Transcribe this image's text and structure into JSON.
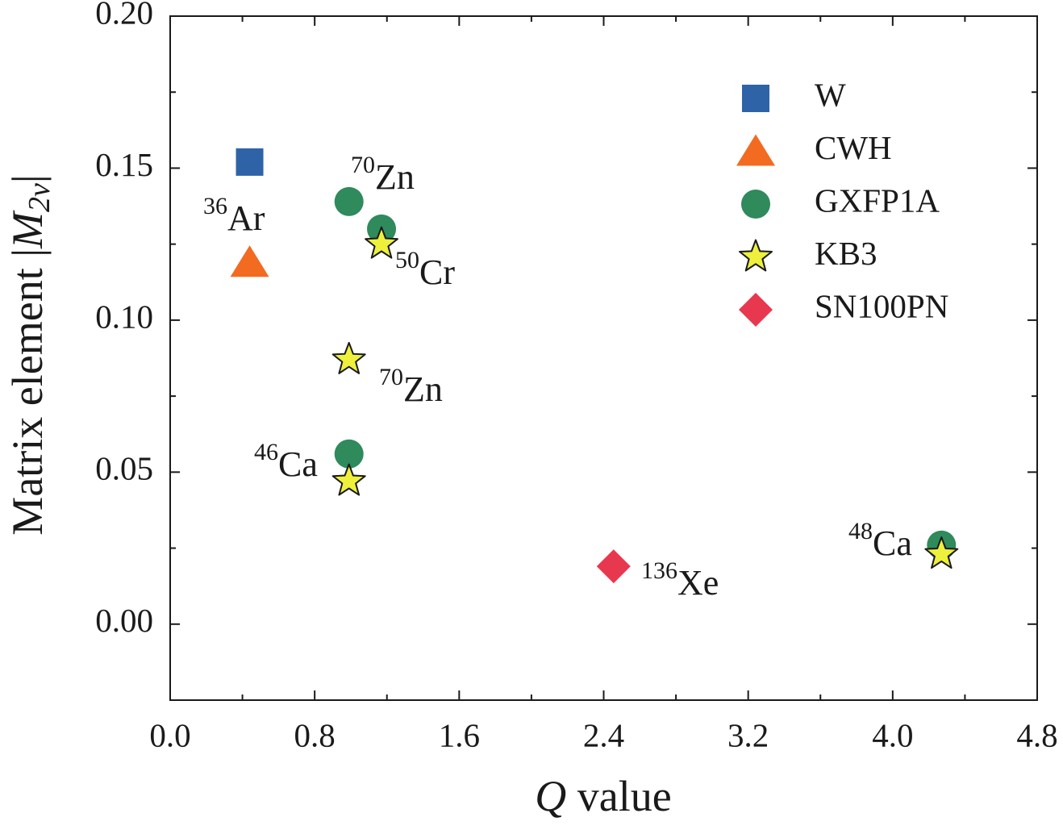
{
  "chart_data": {
    "type": "scatter",
    "x_label": {
      "symbol": "Q",
      "text": "value"
    },
    "y_label": {
      "text": "Matrix element",
      "open": "|",
      "symbol": "M",
      "subscript": "2ν",
      "close": "|"
    },
    "xlim": [
      0,
      4.8
    ],
    "ylim": [
      -0.025,
      0.2
    ],
    "xticks": [
      {
        "value": 0,
        "label": "0.0"
      },
      0.8,
      1.6,
      2.4,
      3.2,
      {
        "value": 4,
        "label": "4.0"
      },
      4.8
    ],
    "yticks": [
      {
        "value": 0,
        "label": "0.00"
      },
      {
        "value": 0.05,
        "label": "0.05"
      },
      {
        "value": 0.1,
        "label": "0.10"
      },
      {
        "value": 0.15,
        "label": "0.15"
      },
      {
        "value": 0.2,
        "label": "0.20"
      }
    ],
    "xminor_ticks": [
      0.4,
      1.2,
      2,
      2.8,
      3.6,
      4.4
    ],
    "yminor_ticks": [
      -0.025,
      0.025,
      0.075,
      0.125,
      0.175
    ],
    "legend": "upper right",
    "series": [
      {
        "name": "W",
        "color": "#2f63a8",
        "marker": "square",
        "x": [
          0.44
        ],
        "values": [
          0.152
        ]
      },
      {
        "name": "CWH",
        "color": "#f26b21",
        "marker": "triangle",
        "x": [
          0.44
        ],
        "values": [
          0.119
        ]
      },
      {
        "name": "GXFP1A",
        "color": "#2f8a5c",
        "marker": "circle",
        "x": [
          0.99,
          1.17,
          0.99,
          4.27
        ],
        "values": [
          0.139,
          0.13,
          0.056,
          0.026
        ]
      },
      {
        "name": "KB3",
        "color": "#eef03c",
        "marker": "star",
        "x": [
          1.17,
          0.99,
          0.99,
          4.27
        ],
        "values": [
          0.125,
          0.087,
          0.047,
          0.023
        ]
      },
      {
        "name": "SN100PN",
        "color": "#e8384f",
        "marker": "diamond",
        "x": [
          2.455
        ],
        "values": [
          0.019
        ]
      }
    ],
    "annotations": [
      {
        "mass": "36",
        "element": "Ar"
      },
      {
        "mass": "70",
        "element": "Zn"
      },
      {
        "mass": "50",
        "element": "Cr"
      },
      {
        "mass": "70",
        "element": "Zn"
      },
      {
        "mass": "46",
        "element": "Ca"
      },
      {
        "mass": "48",
        "element": "Ca"
      },
      {
        "mass": "136",
        "element": "Xe"
      }
    ]
  }
}
